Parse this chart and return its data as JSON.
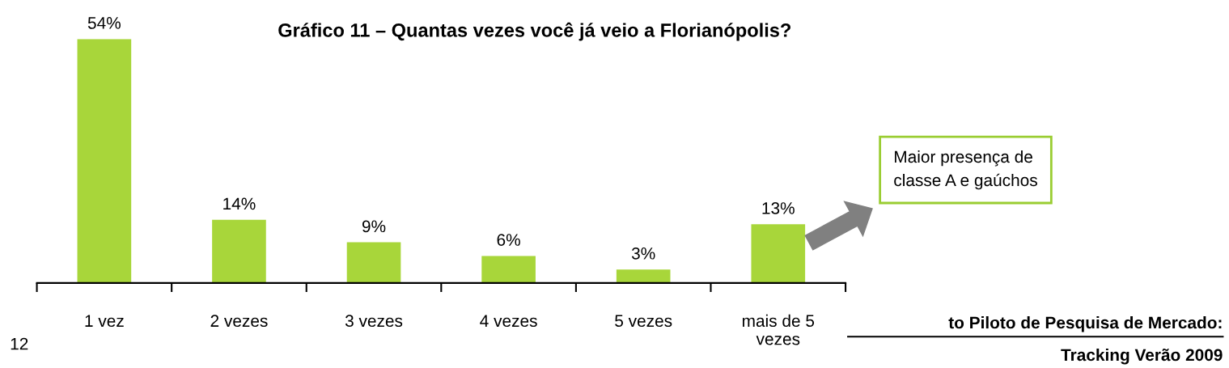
{
  "chart_data": {
    "type": "bar",
    "title": "Gráfico 11 – Quantas vezes você já veio a Florianópolis?",
    "categories": [
      "1 vez",
      "2 vezes",
      "3 vezes",
      "4 vezes",
      "5 vezes",
      "mais de 5\nvezes"
    ],
    "values": [
      54,
      14,
      9,
      6,
      3,
      13
    ],
    "value_labels": [
      "54%",
      "14%",
      "9%",
      "6%",
      "3%",
      "13%"
    ],
    "color": "#a8d63a",
    "ylim": [
      0,
      54
    ],
    "grid": false,
    "annotations": [
      "Maior presença de\nclasse A e gaúchos",
      "12",
      "to Piloto de Pesquisa de Mercado:\nTracking Verão 2009"
    ]
  }
}
